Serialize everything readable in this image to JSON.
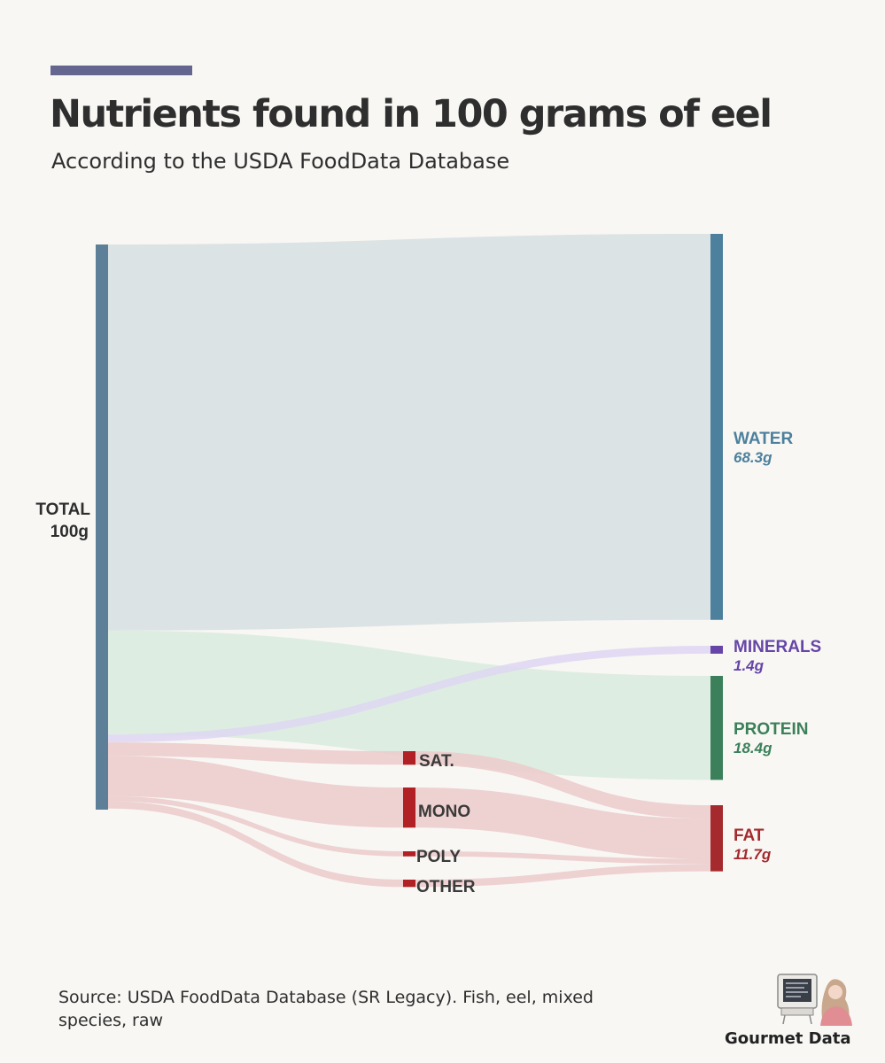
{
  "header": {
    "title": "Nutrients found in 100 grams of eel",
    "subtitle": "According to the USDA FoodData Database"
  },
  "chart_data": {
    "type": "sankey",
    "unit": "g",
    "total": {
      "label": "TOTAL",
      "value_label": "100g",
      "value": 100
    },
    "nodes": [
      {
        "id": "water",
        "label": "WATER",
        "value_label": "68.3g",
        "value": 68.3,
        "color": "#4c809c"
      },
      {
        "id": "minerals",
        "label": "MINERALS",
        "value_label": "1.4g",
        "value": 1.4,
        "color": "#6645a8"
      },
      {
        "id": "protein",
        "label": "PROTEIN",
        "value_label": "18.4g",
        "value": 18.4,
        "color": "#3b805a"
      },
      {
        "id": "fat",
        "label": "FAT",
        "value_label": "11.7g",
        "value": 11.7,
        "color": "#a52a2e"
      },
      {
        "id": "sat",
        "label": "SAT.",
        "value": 2.4,
        "color": "#b02025"
      },
      {
        "id": "mono",
        "label": "MONO",
        "value": 7.1,
        "color": "#b02025"
      },
      {
        "id": "poly",
        "label": "POLY",
        "value": 0.9,
        "color": "#b02025"
      },
      {
        "id": "other",
        "label": "OTHER",
        "value": 1.3,
        "color": "#b02025"
      }
    ],
    "links": [
      {
        "source": "total",
        "target": "water",
        "value": 68.3
      },
      {
        "source": "total",
        "target": "protein",
        "value": 18.4
      },
      {
        "source": "total",
        "target": "minerals",
        "value": 1.4
      },
      {
        "source": "total",
        "target": "sat",
        "value": 2.4
      },
      {
        "source": "total",
        "target": "mono",
        "value": 7.1
      },
      {
        "source": "total",
        "target": "poly",
        "value": 0.9
      },
      {
        "source": "total",
        "target": "other",
        "value": 1.3
      },
      {
        "source": "sat",
        "target": "fat",
        "value": 2.4
      },
      {
        "source": "mono",
        "target": "fat",
        "value": 7.1
      },
      {
        "source": "poly",
        "target": "fat",
        "value": 0.9
      },
      {
        "source": "other",
        "target": "fat",
        "value": 1.3
      }
    ]
  },
  "footer": {
    "source": "Source: USDA FoodData Database (SR Legacy). Fish, eel, mixed species, raw",
    "brand": "Gourmet Data"
  },
  "colors": {
    "background": "#f8f7f4",
    "accent": "#64668f",
    "total_bar": "#5e7f98",
    "water_flow": "#d6dfe1",
    "protein_flow": "#d9ebdd",
    "minerals_flow": "#ded6f2",
    "fat_flow": "#eccaca"
  }
}
